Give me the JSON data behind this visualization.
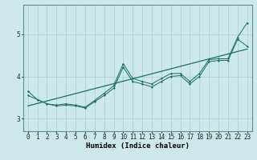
{
  "xlabel": "Humidex (Indice chaleur)",
  "ylabel": "",
  "xlim": [
    -0.5,
    23.5
  ],
  "ylim": [
    2.7,
    5.7
  ],
  "yticks": [
    3,
    4,
    5
  ],
  "xticks": [
    0,
    1,
    2,
    3,
    4,
    5,
    6,
    7,
    8,
    9,
    10,
    11,
    12,
    13,
    14,
    15,
    16,
    17,
    18,
    19,
    20,
    21,
    22,
    23
  ],
  "bg_color": "#cce8e8",
  "grid_color": "#aad4d4",
  "line_color": "#1a6e62",
  "line1_y": [
    3.65,
    3.45,
    3.35,
    3.32,
    3.35,
    3.32,
    3.27,
    3.43,
    3.6,
    3.78,
    4.3,
    3.95,
    3.88,
    3.82,
    3.95,
    4.07,
    4.07,
    3.88,
    4.07,
    4.4,
    4.42,
    4.42,
    4.93,
    5.27
  ],
  "line2_y": [
    3.55,
    3.45,
    3.35,
    3.3,
    3.32,
    3.3,
    3.25,
    3.4,
    3.55,
    3.72,
    4.22,
    3.88,
    3.82,
    3.75,
    3.88,
    4.0,
    4.02,
    3.82,
    4.0,
    4.35,
    4.38,
    4.38,
    4.88,
    4.72
  ],
  "line3_x": [
    0,
    23
  ],
  "line3_y": [
    3.3,
    4.65
  ],
  "tick_fontsize": 5.5,
  "axis_fontsize": 6.5
}
